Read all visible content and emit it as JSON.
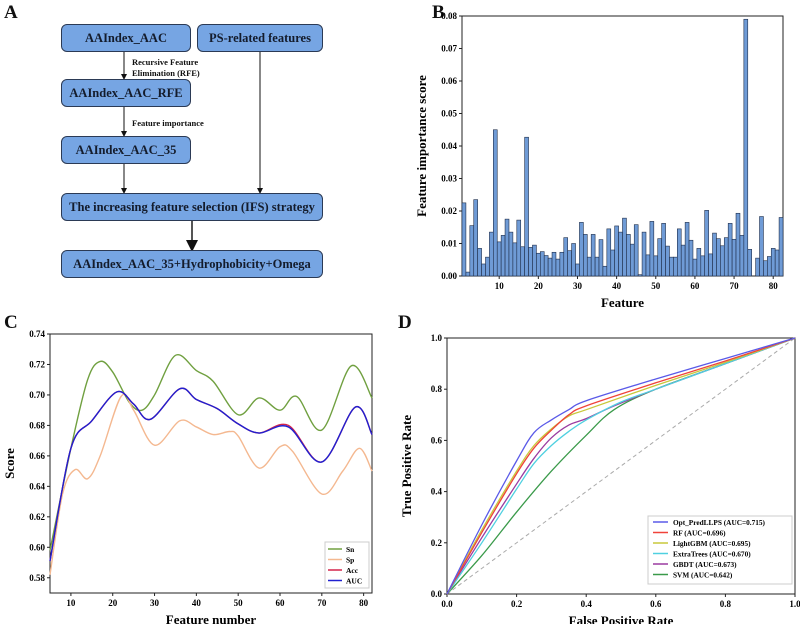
{
  "panels": {
    "a": "A",
    "b": "B",
    "c": "C",
    "d": "D"
  },
  "flowchart": {
    "box_aac": "AAIndex_AAC",
    "box_ps": "PS-related features",
    "box_rfe": "AAIndex_AAC_RFE",
    "box_35": "AAIndex_AAC_35",
    "box_ifs": "The increasing feature selection (IFS) strategy",
    "box_final": "AAIndex_AAC_35+Hydrophobicity+Omega",
    "note_rfe_1": "Recursive Feature",
    "note_rfe_2": "Elimination (RFE)",
    "note_importance": "Feature importance"
  },
  "colors": {
    "bar": "#6f9bd6",
    "bar_edge": "#1f2e4a",
    "box": "#76a5e3"
  },
  "chart_data": [
    {
      "type": "bar",
      "xlabel": "Feature",
      "ylabel": "Feature importance score",
      "xlim": [
        0.5,
        82.5
      ],
      "ylim": [
        0,
        0.08
      ],
      "xticks": [
        10,
        20,
        30,
        40,
        50,
        60,
        70,
        80
      ],
      "yticks": [
        "0.00",
        "0.01",
        "0.02",
        "0.03",
        "0.04",
        "0.05",
        "0.06",
        "0.07",
        "0.08"
      ],
      "values": [
        0.0225,
        0.0012,
        0.0155,
        0.0235,
        0.0085,
        0.0037,
        0.0058,
        0.0135,
        0.045,
        0.0105,
        0.0125,
        0.0175,
        0.0135,
        0.0102,
        0.0172,
        0.009,
        0.0427,
        0.0088,
        0.0095,
        0.007,
        0.0075,
        0.0063,
        0.0055,
        0.0073,
        0.0052,
        0.0073,
        0.0118,
        0.0078,
        0.01,
        0.0037,
        0.0165,
        0.0128,
        0.0058,
        0.0128,
        0.0058,
        0.0112,
        0.003,
        0.0145,
        0.008,
        0.0154,
        0.0135,
        0.0178,
        0.0128,
        0.0098,
        0.0158,
        0.0004,
        0.0135,
        0.0065,
        0.0168,
        0.0062,
        0.0115,
        0.0162,
        0.0092,
        0.0058,
        0.0058,
        0.0145,
        0.0095,
        0.0165,
        0.011,
        0.0052,
        0.0085,
        0.0062,
        0.0202,
        0.0068,
        0.0132,
        0.0115,
        0.0093,
        0.0118,
        0.0162,
        0.0113,
        0.0193,
        0.0125,
        0.079,
        0.0082,
        0,
        0.0055,
        0.0183,
        0.0047,
        0.006,
        0.0085,
        0.008,
        0.018
      ]
    },
    {
      "type": "line",
      "xlabel": "Feature number",
      "ylabel": "Score",
      "xlim": [
        5,
        82
      ],
      "ylim": [
        0.57,
        0.74
      ],
      "xticks": [
        10,
        20,
        30,
        40,
        50,
        60,
        70,
        80
      ],
      "yticks": [
        "0.58",
        "0.60",
        "0.62",
        "0.64",
        "0.66",
        "0.68",
        "0.70",
        "0.72",
        "0.74"
      ],
      "legend": "bottom-right",
      "series": [
        {
          "name": "Sn",
          "color": "#70a040",
          "points": [
            [
              5,
              0.598
            ],
            [
              10,
              0.665
            ],
            [
              14,
              0.71
            ],
            [
              17,
              0.722
            ],
            [
              20,
              0.715
            ],
            [
              24,
              0.695
            ],
            [
              27,
              0.69
            ],
            [
              30,
              0.7
            ],
            [
              35,
              0.726
            ],
            [
              40,
              0.716
            ],
            [
              44,
              0.709
            ],
            [
              50,
              0.687
            ],
            [
              55,
              0.698
            ],
            [
              60,
              0.69
            ],
            [
              64,
              0.699
            ],
            [
              70,
              0.677
            ],
            [
              77,
              0.719
            ],
            [
              82,
              0.698
            ]
          ]
        },
        {
          "name": "Sp",
          "color": "#f4b890",
          "points": [
            [
              5,
              0.582
            ],
            [
              8,
              0.635
            ],
            [
              11,
              0.651
            ],
            [
              14,
              0.645
            ],
            [
              17,
              0.66
            ],
            [
              22,
              0.699
            ],
            [
              25,
              0.69
            ],
            [
              30,
              0.667
            ],
            [
              36,
              0.683
            ],
            [
              40,
              0.679
            ],
            [
              44,
              0.674
            ],
            [
              48,
              0.676
            ],
            [
              50,
              0.673
            ],
            [
              55,
              0.652
            ],
            [
              60,
              0.666
            ],
            [
              63,
              0.663
            ],
            [
              70,
              0.635
            ],
            [
              75,
              0.65
            ],
            [
              79,
              0.665
            ],
            [
              82,
              0.65
            ]
          ]
        },
        {
          "name": "Acc",
          "color": "#d4244a",
          "points": [
            [
              5,
              0.591
            ],
            [
              10,
              0.665
            ],
            [
              15,
              0.683
            ],
            [
              21,
              0.702
            ],
            [
              25,
              0.694
            ],
            [
              29,
              0.684
            ],
            [
              36,
              0.704
            ],
            [
              40,
              0.697
            ],
            [
              45,
              0.691
            ],
            [
              50,
              0.681
            ],
            [
              55,
              0.675
            ],
            [
              62,
              0.68
            ],
            [
              70,
              0.656
            ],
            [
              78,
              0.692
            ],
            [
              82,
              0.674
            ]
          ]
        },
        {
          "name": "AUC",
          "color": "#2020d0",
          "points": [
            [
              5,
              0.591
            ],
            [
              10,
              0.665
            ],
            [
              15,
              0.683
            ],
            [
              21,
              0.702
            ],
            [
              25,
              0.694
            ],
            [
              29,
              0.684
            ],
            [
              36,
              0.704
            ],
            [
              40,
              0.697
            ],
            [
              45,
              0.691
            ],
            [
              50,
              0.681
            ],
            [
              55,
              0.675
            ],
            [
              62,
              0.679
            ],
            [
              70,
              0.656
            ],
            [
              78,
              0.692
            ],
            [
              82,
              0.674
            ]
          ]
        }
      ]
    },
    {
      "type": "line",
      "xlabel": "False Positive Rate",
      "ylabel": "True Positive Rate",
      "xlim": [
        0,
        1
      ],
      "ylim": [
        0,
        1
      ],
      "xticks": [
        "0.0",
        "0.2",
        "0.4",
        "0.6",
        "0.8",
        "1.0"
      ],
      "yticks": [
        "0.0",
        "0.2",
        "0.4",
        "0.6",
        "0.8",
        "1.0"
      ],
      "legend": "bottom-right",
      "series": [
        {
          "name": "Opt_PredLLPS (AUC=0.715)",
          "color": "#5a5ae8",
          "points": [
            [
              0,
              0
            ],
            [
              0.1,
              0.27
            ],
            [
              0.2,
              0.52
            ],
            [
              0.25,
              0.63
            ],
            [
              0.3,
              0.68
            ],
            [
              0.35,
              0.72
            ],
            [
              0.4,
              0.755
            ],
            [
              0.6,
              0.84
            ],
            [
              0.8,
              0.92
            ],
            [
              1,
              1
            ]
          ]
        },
        {
          "name": "RF (AUC=0.696)",
          "color": "#f0433a",
          "points": [
            [
              0,
              0
            ],
            [
              0.1,
              0.24
            ],
            [
              0.2,
              0.47
            ],
            [
              0.25,
              0.57
            ],
            [
              0.3,
              0.64
            ],
            [
              0.35,
              0.7
            ],
            [
              0.4,
              0.735
            ],
            [
              0.6,
              0.825
            ],
            [
              0.8,
              0.91
            ],
            [
              1,
              1
            ]
          ]
        },
        {
          "name": "LightGBM (AUC=0.695)",
          "color": "#c8c83a",
          "points": [
            [
              0,
              0
            ],
            [
              0.1,
              0.25
            ],
            [
              0.2,
              0.48
            ],
            [
              0.25,
              0.58
            ],
            [
              0.3,
              0.645
            ],
            [
              0.35,
              0.695
            ],
            [
              0.4,
              0.72
            ],
            [
              0.6,
              0.815
            ],
            [
              0.8,
              0.905
            ],
            [
              1,
              1
            ]
          ]
        },
        {
          "name": "ExtraTrees (AUC=0.670)",
          "color": "#4fd0e0",
          "points": [
            [
              0,
              0
            ],
            [
              0.1,
              0.2
            ],
            [
              0.2,
              0.41
            ],
            [
              0.25,
              0.51
            ],
            [
              0.3,
              0.58
            ],
            [
              0.35,
              0.635
            ],
            [
              0.4,
              0.68
            ],
            [
              0.5,
              0.75
            ],
            [
              0.6,
              0.8
            ],
            [
              0.8,
              0.9
            ],
            [
              1,
              1
            ]
          ]
        },
        {
          "name": "GBDT (AUC=0.673)",
          "color": "#9a3aa0",
          "points": [
            [
              0,
              0
            ],
            [
              0.1,
              0.22
            ],
            [
              0.2,
              0.43
            ],
            [
              0.25,
              0.53
            ],
            [
              0.3,
              0.61
            ],
            [
              0.35,
              0.66
            ],
            [
              0.4,
              0.685
            ],
            [
              0.48,
              0.735
            ],
            [
              0.6,
              0.8
            ],
            [
              0.8,
              0.9
            ],
            [
              1,
              1
            ]
          ]
        },
        {
          "name": "SVM (AUC=0.642)",
          "color": "#3a9a4a",
          "points": [
            [
              0,
              0
            ],
            [
              0.1,
              0.15
            ],
            [
              0.2,
              0.32
            ],
            [
              0.3,
              0.48
            ],
            [
              0.4,
              0.62
            ],
            [
              0.48,
              0.72
            ],
            [
              0.6,
              0.8
            ],
            [
              0.8,
              0.9
            ],
            [
              1,
              1
            ]
          ]
        }
      ]
    }
  ]
}
